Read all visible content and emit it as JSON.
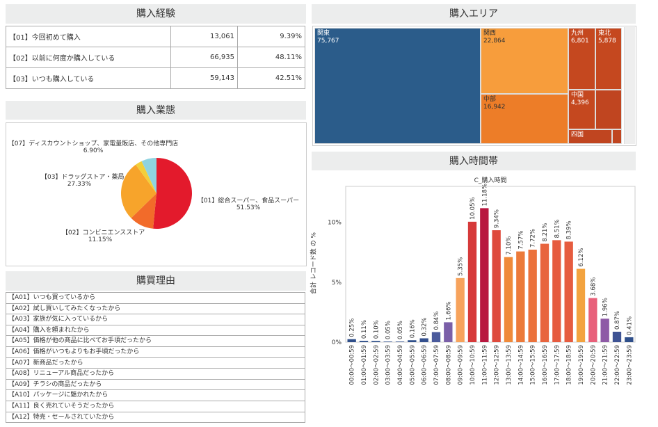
{
  "experience": {
    "title": "購入経験",
    "rows": [
      {
        "label": "【01】今回初めて購入",
        "count": "13,061",
        "pct": "9.39%"
      },
      {
        "label": "【02】以前に何度か購入している",
        "count": "66,935",
        "pct": "48.11%"
      },
      {
        "label": "【03】いつも購入している",
        "count": "59,143",
        "pct": "42.51%"
      }
    ]
  },
  "reasons": {
    "title": "購買理由",
    "items": [
      "【A01】いつも買っているから",
      "【A02】試し買いしてみたくなったから",
      "【A03】家族が気に入っているから",
      "【A04】購入を頼まれたから",
      "【A05】価格が他の商品に比べてお手頃だったから",
      "【A06】価格がいつもよりもお手頃だったから",
      "【A07】新商品だったから",
      "【A08】リニューアル商品だったから",
      "【A09】チラシの商品だったから",
      "【A10】パッケージに魅かれたから",
      "【A11】良く売れていそうだったから",
      "【A12】特売・セールされていたから"
    ]
  },
  "chart_data": [
    {
      "type": "pie",
      "title": "購入業態",
      "slices": [
        {
          "label": "【01】総合スーパー、食品スーパー",
          "value": 51.53,
          "display": "51.53%",
          "color": "#e31a2c"
        },
        {
          "label": "【02】コンビニエンスストア",
          "value": 11.15,
          "display": "11.15%",
          "color": "#f26b2a"
        },
        {
          "label": "【03】ドラッグストア・薬局",
          "value": 27.33,
          "display": "27.33%",
          "color": "#f7a42b"
        },
        {
          "label": "",
          "value": 3.09,
          "display": "",
          "color": "#f2cf3a"
        },
        {
          "label": "【07】ディスカウントショップ、家電量販店、その他専門店",
          "value": 6.9,
          "display": "6.90%",
          "color": "#8fd3e0"
        }
      ]
    },
    {
      "type": "treemap",
      "title": "購入エリア",
      "items": [
        {
          "label": "関東",
          "value": 75767,
          "display": "75,767",
          "color": "#2b5c8a"
        },
        {
          "label": "関西",
          "value": 22864,
          "display": "22,864",
          "color": "#f79d3c"
        },
        {
          "label": "中部",
          "value": 16942,
          "display": "16,942",
          "color": "#ed7d28"
        },
        {
          "label": "九州",
          "value": 6801,
          "display": "6,801",
          "color": "#c5481f"
        },
        {
          "label": "東北",
          "value": 5878,
          "display": "5,878",
          "color": "#c5481f"
        },
        {
          "label": "中国",
          "value": 4396,
          "display": "4,396",
          "color": "#c5481f"
        },
        {
          "label": "",
          "value": null,
          "display": "",
          "color": "#c04520"
        },
        {
          "label": "四国",
          "value": null,
          "display": "",
          "color": "#c04520"
        },
        {
          "label": "",
          "value": null,
          "display": "",
          "color": "#c04520"
        }
      ]
    },
    {
      "type": "bar",
      "section_title": "購入時間帯",
      "title": "C_購入時間",
      "ylabel": "合計 レコード数 の %",
      "ylim": [
        0,
        13
      ],
      "yticks": [
        {
          "v": 0,
          "label": "0%"
        },
        {
          "v": 5,
          "label": "5%"
        },
        {
          "v": 10,
          "label": "10%"
        }
      ],
      "categories": [
        "00:00～00:59",
        "01:00～01:59",
        "02:00～02:59",
        "03:00～03:59",
        "04:00～04:59",
        "05:00～05:59",
        "06:00～06:59",
        "07:00～07:59",
        "08:00～08:59",
        "09:00～09:59",
        "10:00～10:59",
        "11:00～11:59",
        "12:00～12:59",
        "13:00～13:59",
        "14:00～14:59",
        "15:00～15:59",
        "16:00～16:59",
        "17:00～17:59",
        "18:00～18:59",
        "19:00～19:59",
        "20:00～20:59",
        "21:00～21:59",
        "22:00～22:59",
        "23:00～23:59"
      ],
      "values": [
        0.25,
        0.11,
        0.1,
        0.05,
        0.05,
        0.16,
        0.32,
        0.84,
        1.66,
        5.35,
        10.05,
        11.18,
        9.34,
        7.1,
        7.57,
        7.72,
        8.21,
        8.51,
        8.39,
        6.12,
        3.68,
        1.96,
        0.87,
        0.41
      ],
      "labels": [
        "0.25%",
        "0.11%",
        "0.10%",
        "0.05%",
        "0.05%",
        "0.16%",
        "0.32%",
        "0.84%",
        "1.66%",
        "5.35%",
        "10.05%",
        "11.18%",
        "9.34%",
        "7.10%",
        "7.57%",
        "7.72%",
        "8.21%",
        "8.51%",
        "8.39%",
        "6.12%",
        "3.68%",
        "1.96%",
        "0.87%",
        "0.41%"
      ],
      "colors": [
        "#2f4f8a",
        "#2f4f8a",
        "#2f4f8a",
        "#2f4f8a",
        "#2f4f8a",
        "#2f4f8a",
        "#34508e",
        "#4a5a9c",
        "#7a5fa8",
        "#f7a35c",
        "#d63a3a",
        "#b8173f",
        "#de4a3c",
        "#ef8a3a",
        "#ec7a3a",
        "#eb723c",
        "#e8643e",
        "#e65b3f",
        "#e65c3f",
        "#f3a33f",
        "#e8607a",
        "#8e5aa6",
        "#3e5394",
        "#2f4f8a"
      ]
    }
  ]
}
